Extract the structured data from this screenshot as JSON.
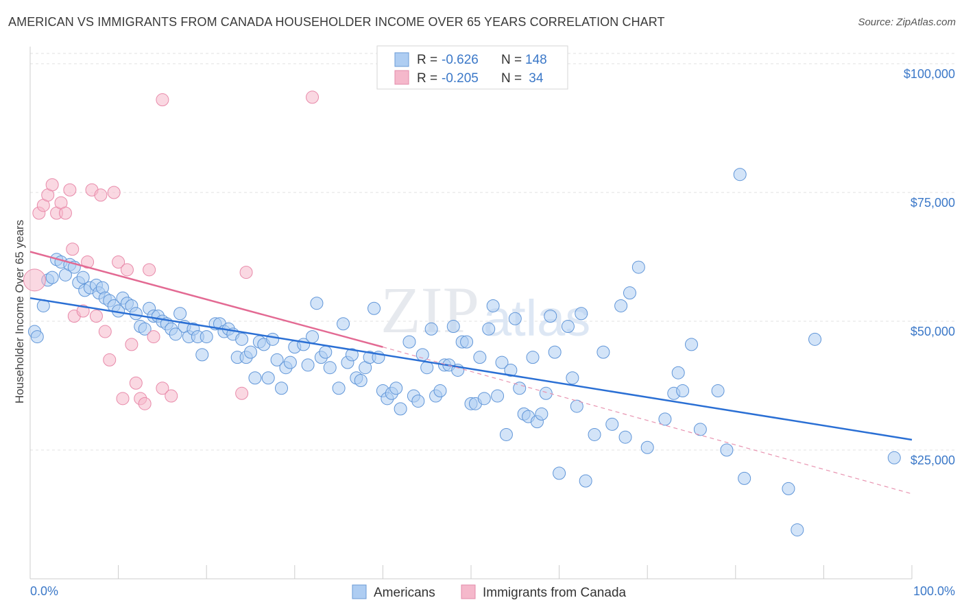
{
  "title": "AMERICAN VS IMMIGRANTS FROM CANADA HOUSEHOLDER INCOME OVER 65 YEARS CORRELATION CHART",
  "source": "Source: ZipAtlas.com",
  "watermark": {
    "zip": "ZIP",
    "atlas": "atlas"
  },
  "colors": {
    "blue": "#3b78c8",
    "blue_fill": "#aecdf2",
    "blue_line": "#2a6fd4",
    "pink_fill": "#f5b8cb",
    "pink_line": "#e36a93",
    "grid": "#dddddd"
  },
  "legend": {
    "rows": [
      {
        "r_label": "R = ",
        "r_value": "-0.626",
        "n_label": "N = ",
        "n_value": "148"
      },
      {
        "r_label": "R = ",
        "r_value": "-0.205",
        "n_label": "N = ",
        "n_value": " 34"
      }
    ]
  },
  "chart_data": {
    "type": "scatter",
    "ylabel": "Householder Income Over 65 years",
    "xlabel": "",
    "xlim": [
      0,
      100
    ],
    "ylim": [
      0,
      102000
    ],
    "x_tick_labels": [
      "0.0%",
      "100.0%"
    ],
    "y_ticks": [
      25000,
      50000,
      75000,
      100000
    ],
    "y_tick_labels": [
      "$25,000",
      "$50,000",
      "$75,000",
      "$100,000"
    ],
    "grid": "horizontal dashed",
    "series": [
      {
        "name": "Americans",
        "color": "#aecdf2",
        "trend": {
          "x": [
            0,
            100
          ],
          "y": [
            54500,
            27000
          ],
          "style": "solid"
        },
        "points": [
          [
            0.5,
            48000
          ],
          [
            0.8,
            47000
          ],
          [
            1.5,
            53000
          ],
          [
            2,
            58000
          ],
          [
            2.5,
            58500
          ],
          [
            3,
            62000
          ],
          [
            3.5,
            61500
          ],
          [
            4,
            59000
          ],
          [
            4.5,
            61000
          ],
          [
            5,
            60500
          ],
          [
            5.5,
            57500
          ],
          [
            6,
            58500
          ],
          [
            6.2,
            56000
          ],
          [
            6.8,
            56500
          ],
          [
            7.5,
            57000
          ],
          [
            7.8,
            55500
          ],
          [
            8.2,
            56500
          ],
          [
            8.5,
            54500
          ],
          [
            9,
            54000
          ],
          [
            9.5,
            53000
          ],
          [
            10,
            52000
          ],
          [
            10.5,
            54500
          ],
          [
            11,
            53500
          ],
          [
            11.5,
            53000
          ],
          [
            12,
            51500
          ],
          [
            12.5,
            49000
          ],
          [
            13,
            48500
          ],
          [
            13.5,
            52500
          ],
          [
            14,
            51000
          ],
          [
            14.5,
            51000
          ],
          [
            15,
            50000
          ],
          [
            15.5,
            49500
          ],
          [
            16,
            48500
          ],
          [
            16.5,
            47500
          ],
          [
            17,
            51500
          ],
          [
            17.5,
            49000
          ],
          [
            18,
            47000
          ],
          [
            18.5,
            48500
          ],
          [
            19,
            47000
          ],
          [
            19.5,
            43500
          ],
          [
            20,
            47000
          ],
          [
            21,
            49500
          ],
          [
            21.5,
            49500
          ],
          [
            22,
            48000
          ],
          [
            22.5,
            48500
          ],
          [
            23,
            47500
          ],
          [
            23.5,
            43000
          ],
          [
            24,
            46500
          ],
          [
            24.5,
            43000
          ],
          [
            25,
            44000
          ],
          [
            25.5,
            39000
          ],
          [
            26,
            46000
          ],
          [
            26.5,
            45500
          ],
          [
            27,
            39000
          ],
          [
            27.5,
            46500
          ],
          [
            28,
            42500
          ],
          [
            28.5,
            37000
          ],
          [
            29,
            41000
          ],
          [
            29.5,
            42000
          ],
          [
            30,
            45000
          ],
          [
            31,
            45500
          ],
          [
            31.5,
            41500
          ],
          [
            32,
            47000
          ],
          [
            32.5,
            53500
          ],
          [
            33,
            43000
          ],
          [
            33.5,
            44000
          ],
          [
            34,
            41000
          ],
          [
            35,
            37000
          ],
          [
            35.5,
            49500
          ],
          [
            36,
            42000
          ],
          [
            36.5,
            43500
          ],
          [
            37,
            39000
          ],
          [
            37.5,
            38500
          ],
          [
            38,
            41000
          ],
          [
            38.5,
            43000
          ],
          [
            39,
            52500
          ],
          [
            39.5,
            43000
          ],
          [
            40,
            36500
          ],
          [
            40.5,
            35000
          ],
          [
            41,
            36000
          ],
          [
            41.5,
            37000
          ],
          [
            42,
            33000
          ],
          [
            43,
            46000
          ],
          [
            43.5,
            35500
          ],
          [
            44,
            34500
          ],
          [
            44.5,
            43500
          ],
          [
            45,
            41000
          ],
          [
            45.5,
            48500
          ],
          [
            46,
            35500
          ],
          [
            46.5,
            36500
          ],
          [
            47,
            41500
          ],
          [
            47.5,
            41500
          ],
          [
            48,
            49000
          ],
          [
            48.5,
            40500
          ],
          [
            49,
            46000
          ],
          [
            49.5,
            46000
          ],
          [
            50,
            34000
          ],
          [
            50.5,
            34000
          ],
          [
            51,
            43000
          ],
          [
            51.5,
            35000
          ],
          [
            52,
            48500
          ],
          [
            52.5,
            53000
          ],
          [
            53,
            35500
          ],
          [
            53.5,
            42000
          ],
          [
            54,
            28000
          ],
          [
            54.5,
            40500
          ],
          [
            55,
            50500
          ],
          [
            55.5,
            37000
          ],
          [
            56,
            32000
          ],
          [
            56.5,
            31500
          ],
          [
            57,
            43000
          ],
          [
            57.5,
            30500
          ],
          [
            58,
            32000
          ],
          [
            58.5,
            36000
          ],
          [
            59,
            51000
          ],
          [
            59.5,
            44000
          ],
          [
            60,
            20500
          ],
          [
            61,
            49000
          ],
          [
            61.5,
            39000
          ],
          [
            62,
            33500
          ],
          [
            62.5,
            51500
          ],
          [
            63,
            19000
          ],
          [
            64,
            28000
          ],
          [
            65,
            44000
          ],
          [
            66,
            30000
          ],
          [
            67,
            53000
          ],
          [
            67.5,
            27500
          ],
          [
            68,
            55500
          ],
          [
            69,
            60500
          ],
          [
            70,
            25500
          ],
          [
            72,
            31000
          ],
          [
            73,
            36000
          ],
          [
            73.5,
            40000
          ],
          [
            74,
            36500
          ],
          [
            75,
            45500
          ],
          [
            76,
            29000
          ],
          [
            78,
            36500
          ],
          [
            79,
            25000
          ],
          [
            80.5,
            78500
          ],
          [
            81,
            19500
          ],
          [
            86,
            17500
          ],
          [
            87,
            9500
          ],
          [
            89,
            46500
          ],
          [
            98,
            23500
          ]
        ]
      },
      {
        "name": "Immigrants from Canada",
        "color": "#f5b8cb",
        "trend": {
          "x": [
            0,
            40
          ],
          "y": [
            63500,
            45000
          ],
          "style": "solid",
          "extension": {
            "x": [
              40,
              100
            ],
            "y": [
              45000,
              16500
            ],
            "style": "dashed"
          }
        },
        "points": [
          [
            0.5,
            58000
          ],
          [
            1,
            71000
          ],
          [
            1.5,
            72500
          ],
          [
            2,
            74500
          ],
          [
            2.5,
            76500
          ],
          [
            3,
            71000
          ],
          [
            3.5,
            73000
          ],
          [
            4,
            71000
          ],
          [
            4.5,
            75500
          ],
          [
            4.8,
            64000
          ],
          [
            5,
            51000
          ],
          [
            6,
            52000
          ],
          [
            6.5,
            61500
          ],
          [
            7,
            75500
          ],
          [
            7.5,
            51000
          ],
          [
            8,
            74500
          ],
          [
            8.5,
            48000
          ],
          [
            9,
            42500
          ],
          [
            9.5,
            75000
          ],
          [
            10,
            61500
          ],
          [
            10.5,
            35000
          ],
          [
            11,
            60000
          ],
          [
            11.5,
            45500
          ],
          [
            12,
            38000
          ],
          [
            12.5,
            35000
          ],
          [
            13,
            34000
          ],
          [
            13.5,
            60000
          ],
          [
            14,
            47000
          ],
          [
            15,
            37000
          ],
          [
            16,
            35500
          ],
          [
            15,
            93000
          ],
          [
            24,
            36000
          ],
          [
            24.5,
            59500
          ],
          [
            32,
            93500
          ]
        ]
      }
    ]
  },
  "bottom_legend": [
    {
      "label": "Americans",
      "color": "#aecdf2"
    },
    {
      "label": "Immigrants from Canada",
      "color": "#f5b8cb"
    }
  ]
}
